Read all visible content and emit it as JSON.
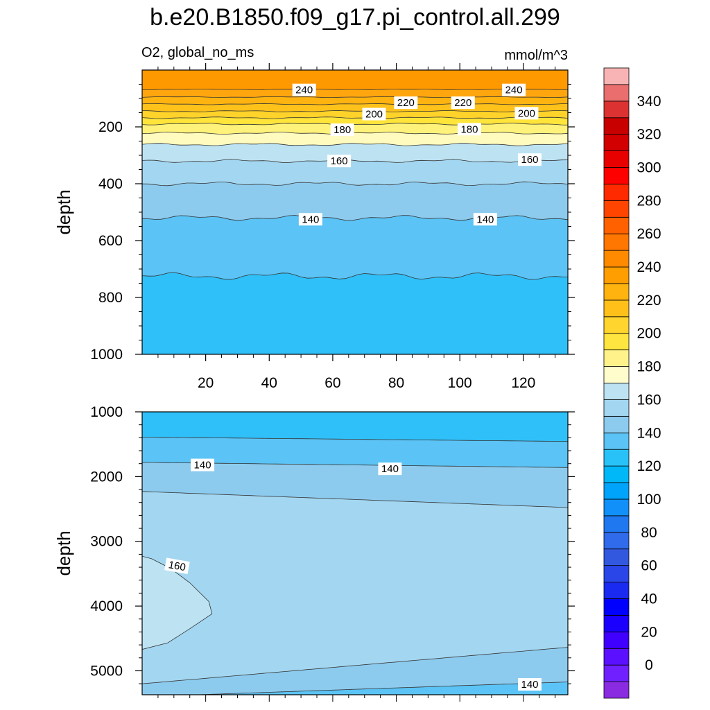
{
  "colors": {
    "o250": "#FF9900",
    "o240": "#FFA60F",
    "o230": "#FFB310",
    "o220": "#FFC21A",
    "o210": "#FFD32A",
    "o200": "#FFE43A",
    "o190": "#FFF27A",
    "o180": "#FFFBBF",
    "b170": "#BDE3F3",
    "b160": "#A3D6F0",
    "b150": "#8DCBEE",
    "b140": "#5BC3F5",
    "b130": "#2FC0FA",
    "b120": "#12A8F6"
  },
  "chart_data": {
    "title": "b.e20.B1850.f09_g17.pi_control.all.299",
    "left_label": "O2, global_no_ms",
    "right_label": "mmol/m^3",
    "type": "heatmap",
    "panels": [
      {
        "name": "upper",
        "ylabel": "depth",
        "ylim": [
          1000,
          0
        ],
        "yticks": [
          "200",
          "400",
          "600",
          "800",
          "1000"
        ],
        "xlim": [
          0,
          134
        ],
        "xticks": [
          "20",
          "40",
          "60",
          "80",
          "100",
          "120"
        ],
        "contour_labels": [
          {
            "text": "240",
            "x": 51,
            "y": 70
          },
          {
            "text": "240",
            "x": 117,
            "y": 70
          },
          {
            "text": "220",
            "x": 83,
            "y": 115
          },
          {
            "text": "220",
            "x": 101,
            "y": 115
          },
          {
            "text": "200",
            "x": 73,
            "y": 155
          },
          {
            "text": "200",
            "x": 121,
            "y": 152
          },
          {
            "text": "180",
            "x": 63,
            "y": 210
          },
          {
            "text": "180",
            "x": 103,
            "y": 208
          },
          {
            "text": "160",
            "x": 62,
            "y": 320
          },
          {
            "text": "160",
            "x": 122,
            "y": 315
          },
          {
            "text": "140",
            "x": 53,
            "y": 525
          },
          {
            "text": "140",
            "x": 108,
            "y": 525
          }
        ]
      },
      {
        "name": "lower",
        "ylabel": "depth",
        "ylim": [
          5370,
          1000
        ],
        "yticks": [
          "1000",
          "2000",
          "3000",
          "4000",
          "5000"
        ],
        "xlim": [
          0,
          134
        ],
        "contour_labels": [
          {
            "text": "140",
            "x": 19,
            "y": 1820
          },
          {
            "text": "140",
            "x": 78,
            "y": 1880
          },
          {
            "text": "160",
            "x": 11,
            "y": 3380
          },
          {
            "text": "140",
            "x": 122,
            "y": 5210
          }
        ]
      }
    ],
    "colorbar": {
      "levels": [
        {
          "label": "",
          "color": "#8A2BE2"
        },
        {
          "label": "0",
          "color": "#7020FF"
        },
        {
          "label": "",
          "color": "#5B10FF"
        },
        {
          "label": "20",
          "color": "#3F00FF"
        },
        {
          "label": "",
          "color": "#1A00FF"
        },
        {
          "label": "40",
          "color": "#0000FF"
        },
        {
          "label": "",
          "color": "#1A2AF0"
        },
        {
          "label": "60",
          "color": "#2A46E8"
        },
        {
          "label": "",
          "color": "#3358E0"
        },
        {
          "label": "80",
          "color": "#2F6BEA"
        },
        {
          "label": "",
          "color": "#2078F0"
        },
        {
          "label": "100",
          "color": "#1090F8"
        },
        {
          "label": "",
          "color": "#00A4FA"
        },
        {
          "label": "120",
          "color": "#00B8F8"
        },
        {
          "label": "",
          "color": "#28C2F8"
        },
        {
          "label": "140",
          "color": "#5BC3F5"
        },
        {
          "label": "",
          "color": "#8DCBEE"
        },
        {
          "label": "160",
          "color": "#A3D6F0"
        },
        {
          "label": "",
          "color": "#BDE3F3"
        },
        {
          "label": "180",
          "color": "#FFFDCC"
        },
        {
          "label": "",
          "color": "#FFF28A"
        },
        {
          "label": "200",
          "color": "#FFE53F"
        },
        {
          "label": "",
          "color": "#FFD52E"
        },
        {
          "label": "220",
          "color": "#FFC01A"
        },
        {
          "label": "",
          "color": "#FFB30F"
        },
        {
          "label": "240",
          "color": "#FF9E00"
        },
        {
          "label": "",
          "color": "#FF8A00"
        },
        {
          "label": "260",
          "color": "#FF7700"
        },
        {
          "label": "",
          "color": "#FF6100"
        },
        {
          "label": "280",
          "color": "#FF4500"
        },
        {
          "label": "",
          "color": "#FF2A00"
        },
        {
          "label": "300",
          "color": "#FF0000"
        },
        {
          "label": "",
          "color": "#E80000"
        },
        {
          "label": "320",
          "color": "#D20000"
        },
        {
          "label": "",
          "color": "#C80000"
        },
        {
          "label": "340",
          "color": "#DC3232"
        },
        {
          "label": "",
          "color": "#EA6E6E"
        },
        {
          "label": "",
          "color": "#F8B4B4"
        }
      ]
    }
  }
}
